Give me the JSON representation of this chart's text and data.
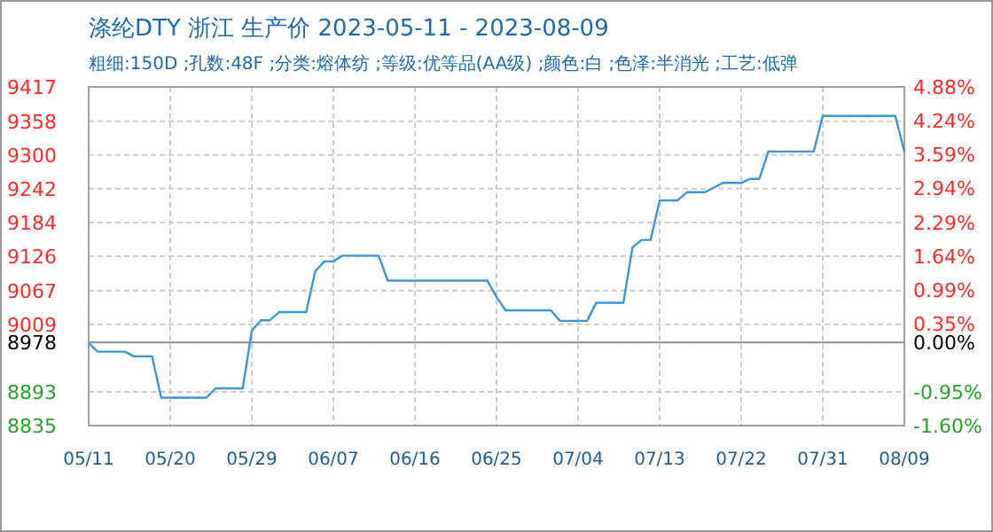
{
  "chart_data": {
    "type": "line",
    "title": "涤纶DTY 浙江 生产价 2023-05-11 - 2023-08-09",
    "subtitle": "粗细:150D ;孔数:48F ;分类:熔体纺 ;等级:优等品(AA级) ;颜色:白 ;色泽:半消光 ;工艺:低弹",
    "x": [
      "2023-05-11",
      "2023-05-12",
      "2023-05-15",
      "2023-05-16",
      "2023-05-18",
      "2023-05-19",
      "2023-05-24",
      "2023-05-25",
      "2023-05-28",
      "2023-05-29",
      "2023-05-30",
      "2023-05-31",
      "2023-06-01",
      "2023-06-04",
      "2023-06-05",
      "2023-06-06",
      "2023-06-07",
      "2023-06-08",
      "2023-06-12",
      "2023-06-13",
      "2023-06-24",
      "2023-06-25",
      "2023-06-26",
      "2023-07-01",
      "2023-07-02",
      "2023-07-05",
      "2023-07-06",
      "2023-07-09",
      "2023-07-10",
      "2023-07-11",
      "2023-07-12",
      "2023-07-13",
      "2023-07-15",
      "2023-07-16",
      "2023-07-18",
      "2023-07-20",
      "2023-07-22",
      "2023-07-23",
      "2023-07-24",
      "2023-07-25",
      "2023-07-30",
      "2023-07-31",
      "2023-08-07",
      "2023-08-08",
      "2023-08-09"
    ],
    "series": [
      {
        "color": "#3a96d6",
        "values": [
          8977,
          8962,
          8962,
          8954,
          8954,
          8883,
          8883,
          8899,
          8899,
          8998,
          9016,
          9016,
          9030,
          9030,
          9100,
          9117,
          9117,
          9127,
          9127,
          9084,
          9084,
          9056,
          9033,
          9033,
          9015,
          9015,
          9046,
          9046,
          9141,
          9154,
          9154,
          9222,
          9222,
          9236,
          9236,
          9252,
          9252,
          9259,
          9259,
          9306,
          9306,
          9367,
          9367,
          9367,
          9306
        ]
      }
    ],
    "xlim": [
      "2023-05-11",
      "2023-08-09"
    ],
    "xticks": [
      {
        "value": "2023-05-11",
        "label": "05/11"
      },
      {
        "value": "2023-05-20",
        "label": "05/20"
      },
      {
        "value": "2023-05-29",
        "label": "05/29"
      },
      {
        "value": "2023-06-07",
        "label": "06/07"
      },
      {
        "value": "2023-06-16",
        "label": "06/16"
      },
      {
        "value": "2023-06-25",
        "label": "06/25"
      },
      {
        "value": "2023-07-04",
        "label": "07/04"
      },
      {
        "value": "2023-07-13",
        "label": "07/13"
      },
      {
        "value": "2023-07-22",
        "label": "07/22"
      },
      {
        "value": "2023-07-31",
        "label": "07/31"
      },
      {
        "value": "2023-08-09",
        "label": "08/09"
      }
    ],
    "ylim": [
      8835,
      9417
    ],
    "yticks": [
      8835,
      8893,
      8978,
      9009,
      9067,
      9126,
      9184,
      9242,
      9300,
      9358,
      9417
    ],
    "y2lim": [
      -1.6,
      4.88
    ],
    "y2ticks": [
      {
        "value": -1.6,
        "label": "-1.60%"
      },
      {
        "value": -0.95,
        "label": "-0.95%"
      },
      {
        "value": 0,
        "label": "0.00%"
      },
      {
        "value": 0.35,
        "label": "0.35%"
      },
      {
        "value": 0.99,
        "label": "0.99%"
      },
      {
        "value": 1.64,
        "label": "1.64%"
      },
      {
        "value": 2.29,
        "label": "2.29%"
      },
      {
        "value": 2.94,
        "label": "2.94%"
      },
      {
        "value": 3.59,
        "label": "3.59%"
      },
      {
        "value": 4.24,
        "label": "4.24%"
      },
      {
        "value": 4.88,
        "label": "4.88%"
      }
    ],
    "ref_lines": [
      {
        "axis": "y",
        "value": 8978,
        "color": "#999999"
      }
    ],
    "grid": true
  }
}
